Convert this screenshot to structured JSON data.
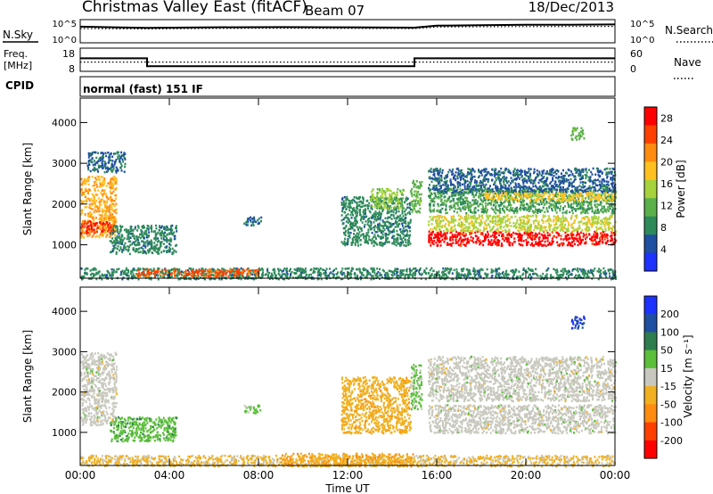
{
  "header": {
    "title": "Christmas Valley East (fitACF)",
    "beam": "Beam 07",
    "date": "18/Dec/2013"
  },
  "noise_panel": {
    "left_label": "N.Sky",
    "right_label": "N.Search",
    "left_ticks": [
      "10^5",
      "10^0"
    ],
    "right_ticks": [
      "10^5",
      "10^0"
    ]
  },
  "freq_panel": {
    "left_label_1": "Freq.",
    "left_label_2": "[MHz]",
    "right_label": "Nave",
    "left_ticks": [
      "18",
      "8"
    ],
    "right_ticks": [
      "60",
      "0"
    ]
  },
  "cpid": {
    "label": "CPID",
    "value": "normal (fast) 151 IF"
  },
  "colors": {
    "power_scale": [
      "#1e32ff",
      "#1f4fa0",
      "#2e8a5a",
      "#5bb04a",
      "#a6d33c",
      "#ffc020",
      "#ff8c10",
      "#ff4000",
      "#ff0000"
    ],
    "velocity_scale": [
      "#1e32ff",
      "#1f4fa0",
      "#2e7d4f",
      "#5bbf3a",
      "#c8c8be",
      "#f0b020",
      "#ff8c10",
      "#ff4000",
      "#ff0000"
    ]
  },
  "chart_data": [
    {
      "type": "line",
      "title": "",
      "ylabel": "N.Sky",
      "y2label": "N.Search",
      "yscale": "log",
      "ylim": [
        1,
        100000
      ],
      "x": [
        "00:00",
        "03:00",
        "06:00",
        "09:00",
        "12:00",
        "15:00",
        "16:00",
        "18:00",
        "20:00",
        "22:00",
        "24:00"
      ],
      "series": [
        {
          "name": "N.Sky",
          "values": [
            3000,
            1600,
            2200,
            2400,
            2200,
            1900,
            5000,
            6500,
            7500,
            8000,
            9000
          ]
        },
        {
          "name": "N.Search",
          "values": [
            1200,
            1000,
            1300,
            1400,
            1300,
            1200,
            2500,
            3000,
            3200,
            3300,
            3500
          ]
        }
      ]
    },
    {
      "type": "line",
      "title": "",
      "ylabel": "Freq. [MHz]",
      "y2label": "Nave",
      "ylim": [
        8,
        18
      ],
      "y2lim": [
        0,
        60
      ],
      "x": [
        "00:00",
        "03:00",
        "03:00",
        "15:00",
        "15:00",
        "24:00"
      ],
      "series": [
        {
          "name": "Freq.",
          "values": [
            13.6,
            13.6,
            10.2,
            10.2,
            13.6,
            13.6
          ]
        },
        {
          "name": "Nave",
          "values": [
            24,
            24,
            24,
            24,
            24,
            24
          ]
        }
      ]
    },
    {
      "type": "heatmap",
      "title": "",
      "xlabel": "Time UT",
      "ylabel": "Slant Range [km]",
      "colorbar_label": "Power [dB]",
      "colorbar_ticks": [
        4,
        8,
        12,
        16,
        20,
        24,
        28
      ],
      "color_range": [
        0,
        30
      ],
      "xticks": [
        "00:00",
        "04:00",
        "08:00",
        "12:00",
        "16:00",
        "20:00",
        "00:00"
      ],
      "xlim": [
        0,
        24
      ],
      "yticks": [
        1000,
        2000,
        3000,
        4000
      ],
      "ylim": [
        180,
        4600
      ],
      "echo_regions": [
        {
          "t": [
            0.0,
            1.6
          ],
          "r": [
            1200,
            2700
          ],
          "value": 20
        },
        {
          "t": [
            0.0,
            1.5
          ],
          "r": [
            1300,
            1600
          ],
          "value": 26
        },
        {
          "t": [
            1.3,
            4.3
          ],
          "r": [
            800,
            1500
          ],
          "value": 8
        },
        {
          "t": [
            0.3,
            2.0
          ],
          "r": [
            2800,
            3300
          ],
          "value": 6
        },
        {
          "t": [
            0.0,
            24.0
          ],
          "r": [
            180,
            450
          ],
          "value": 8
        },
        {
          "t": [
            2.5,
            8.0
          ],
          "r": [
            250,
            420
          ],
          "value": 24
        },
        {
          "t": [
            7.3,
            8.1
          ],
          "r": [
            1500,
            1700
          ],
          "value": 6
        },
        {
          "t": [
            11.7,
            14.8
          ],
          "r": [
            1000,
            2200
          ],
          "value": 8
        },
        {
          "t": [
            13.0,
            14.5
          ],
          "r": [
            1900,
            2400
          ],
          "value": 14
        },
        {
          "t": [
            14.8,
            15.3
          ],
          "r": [
            1800,
            2600
          ],
          "value": 12
        },
        {
          "t": [
            15.6,
            24.0
          ],
          "r": [
            1000,
            1350
          ],
          "value": 28
        },
        {
          "t": [
            15.6,
            24.0
          ],
          "r": [
            1350,
            1750
          ],
          "value": 16
        },
        {
          "t": [
            15.6,
            24.0
          ],
          "r": [
            1800,
            2400
          ],
          "value": 10
        },
        {
          "t": [
            15.6,
            24.0
          ],
          "r": [
            2300,
            2900
          ],
          "value": 6
        },
        {
          "t": [
            18.0,
            24.0
          ],
          "r": [
            2100,
            2300
          ],
          "value": 18
        },
        {
          "t": [
            22.0,
            22.6
          ],
          "r": [
            3600,
            3900
          ],
          "value": 12
        }
      ]
    },
    {
      "type": "heatmap",
      "title": "",
      "xlabel": "Time UT",
      "ylabel": "Slant Range [km]",
      "colorbar_label": "Velocity [m s⁻¹]",
      "colorbar_ticks": [
        200,
        100,
        50,
        15,
        -15,
        -50,
        -100,
        -200
      ],
      "color_range": [
        -250,
        250
      ],
      "xticks": [
        "00:00",
        "04:00",
        "08:00",
        "12:00",
        "16:00",
        "20:00",
        "00:00"
      ],
      "xlim": [
        0,
        24
      ],
      "yticks": [
        1000,
        2000,
        3000,
        4000
      ],
      "ylim": [
        180,
        4600
      ],
      "echo_regions": [
        {
          "t": [
            0.0,
            1.6
          ],
          "r": [
            1200,
            3000
          ],
          "value": 0
        },
        {
          "t": [
            1.3,
            4.3
          ],
          "r": [
            800,
            1400
          ],
          "value": 60
        },
        {
          "t": [
            0.0,
            24.0
          ],
          "r": [
            180,
            450
          ],
          "value": -40
        },
        {
          "t": [
            9.0,
            15.0
          ],
          "r": [
            180,
            500
          ],
          "value": -70
        },
        {
          "t": [
            7.3,
            8.1
          ],
          "r": [
            1500,
            1700
          ],
          "value": 50
        },
        {
          "t": [
            11.7,
            14.8
          ],
          "r": [
            1000,
            2400
          ],
          "value": -60
        },
        {
          "t": [
            14.8,
            15.3
          ],
          "r": [
            1600,
            2700
          ],
          "value": 40
        },
        {
          "t": [
            15.6,
            24.0
          ],
          "r": [
            1000,
            1700
          ],
          "value": 0
        },
        {
          "t": [
            15.6,
            24.0
          ],
          "r": [
            1800,
            2900
          ],
          "value": 0
        },
        {
          "t": [
            22.0,
            22.6
          ],
          "r": [
            3600,
            3900
          ],
          "value": 200
        }
      ]
    }
  ]
}
